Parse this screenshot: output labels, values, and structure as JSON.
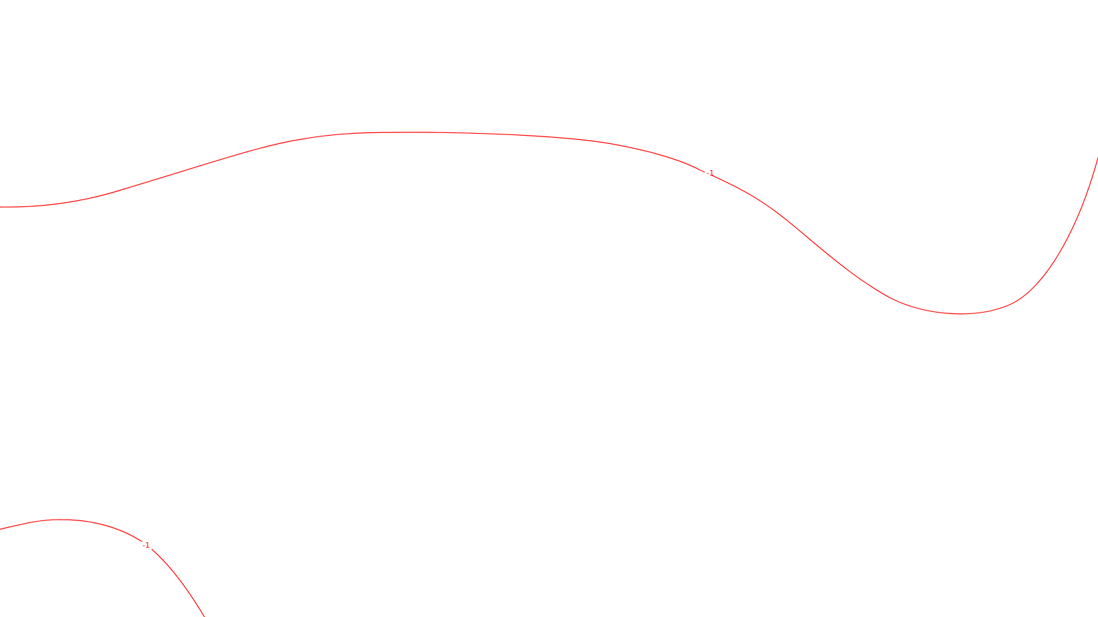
{
  "map": {
    "background_color": "#ffffff",
    "line_color": "#ff0000",
    "contours": [
      {
        "id": "upper",
        "level_label": "-1"
      },
      {
        "id": "lower",
        "level_label": "-1"
      }
    ]
  }
}
